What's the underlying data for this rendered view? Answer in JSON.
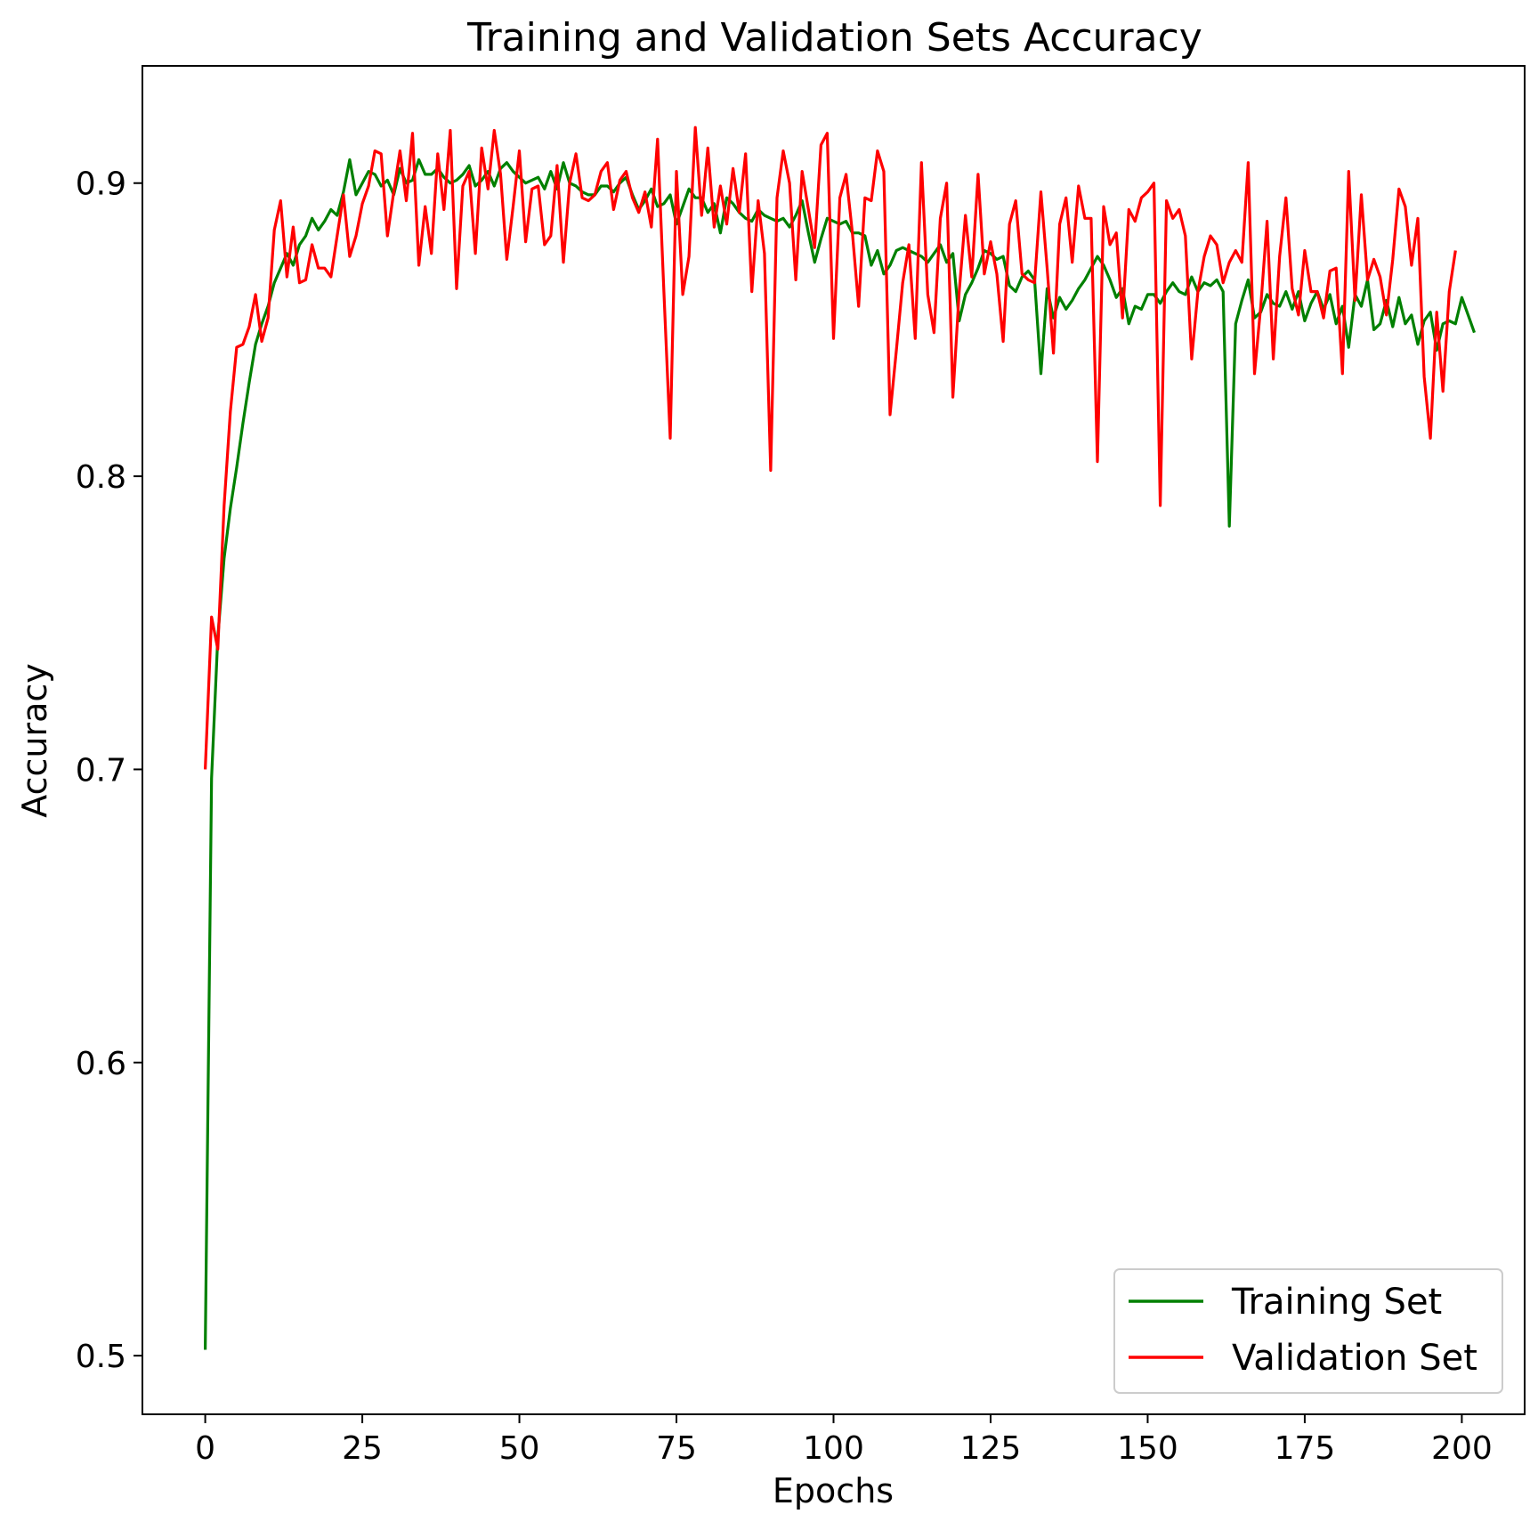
{
  "chart_data": {
    "type": "line",
    "title": "Training and Validation Sets Accuracy",
    "xlabel": "Epochs",
    "ylabel": "Accuracy",
    "xlim": [
      -10,
      210
    ],
    "ylim": [
      0.48,
      0.94
    ],
    "xticks": [
      0,
      25,
      50,
      75,
      100,
      125,
      150,
      175,
      200
    ],
    "yticks": [
      0.5,
      0.6,
      0.7,
      0.8,
      0.9
    ],
    "ytick_labels": [
      "0.5",
      "0.6",
      "0.7",
      "0.8",
      "0.9"
    ],
    "grid": false,
    "legend": {
      "placement": "lower-right"
    },
    "series": [
      {
        "name": "Training Set",
        "color": "#008000",
        "values": [
          0.502,
          0.697,
          0.745,
          0.772,
          0.789,
          0.803,
          0.818,
          0.832,
          0.845,
          0.852,
          0.858,
          0.866,
          0.871,
          0.876,
          0.872,
          0.879,
          0.882,
          0.888,
          0.884,
          0.887,
          0.891,
          0.889,
          0.897,
          0.908,
          0.896,
          0.9,
          0.904,
          0.903,
          0.899,
          0.901,
          0.896,
          0.905,
          0.9,
          0.901,
          0.908,
          0.903,
          0.903,
          0.905,
          0.902,
          0.9,
          0.901,
          0.903,
          0.906,
          0.899,
          0.901,
          0.904,
          0.899,
          0.905,
          0.907,
          0.904,
          0.902,
          0.9,
          0.901,
          0.902,
          0.898,
          0.904,
          0.898,
          0.907,
          0.9,
          0.899,
          0.897,
          0.896,
          0.896,
          0.899,
          0.899,
          0.897,
          0.9,
          0.902,
          0.896,
          0.891,
          0.894,
          0.898,
          0.892,
          0.893,
          0.896,
          0.886,
          0.892,
          0.898,
          0.895,
          0.895,
          0.89,
          0.893,
          0.883,
          0.895,
          0.893,
          0.89,
          0.888,
          0.887,
          0.891,
          0.889,
          0.888,
          0.887,
          0.888,
          0.885,
          0.889,
          0.894,
          0.883,
          0.873,
          0.881,
          0.888,
          0.887,
          0.886,
          0.887,
          0.883,
          0.883,
          0.882,
          0.872,
          0.877,
          0.869,
          0.872,
          0.877,
          0.878,
          0.877,
          0.876,
          0.875,
          0.873,
          0.876,
          0.879,
          0.873,
          0.876,
          0.853,
          0.862,
          0.866,
          0.871,
          0.877,
          0.876,
          0.874,
          0.875,
          0.865,
          0.863,
          0.868,
          0.87,
          0.867,
          0.835,
          0.864,
          0.854,
          0.861,
          0.857,
          0.86,
          0.864,
          0.867,
          0.871,
          0.875,
          0.872,
          0.867,
          0.861,
          0.864,
          0.852,
          0.858,
          0.857,
          0.862,
          0.862,
          0.859,
          0.863,
          0.866,
          0.863,
          0.862,
          0.868,
          0.863,
          0.866,
          0.865,
          0.867,
          0.863,
          0.783,
          0.852,
          0.86,
          0.867,
          0.854,
          0.856,
          0.862,
          0.859,
          0.858,
          0.863,
          0.857,
          0.863,
          0.853,
          0.859,
          0.863,
          0.857,
          0.862,
          0.852,
          0.858,
          0.844,
          0.862,
          0.858,
          0.867,
          0.85,
          0.852,
          0.86,
          0.851,
          0.861,
          0.852,
          0.855,
          0.845,
          0.853,
          0.856,
          0.843,
          0.852,
          0.853,
          0.852,
          0.861,
          0.855,
          0.849
        ]
      },
      {
        "name": "Validation Set",
        "color": "#ff0000",
        "values": [
          0.7,
          0.752,
          0.741,
          0.79,
          0.822,
          0.844,
          0.845,
          0.851,
          0.862,
          0.846,
          0.854,
          0.884,
          0.894,
          0.868,
          0.885,
          0.866,
          0.867,
          0.879,
          0.871,
          0.871,
          0.868,
          0.882,
          0.896,
          0.875,
          0.882,
          0.893,
          0.899,
          0.911,
          0.91,
          0.882,
          0.897,
          0.911,
          0.894,
          0.917,
          0.872,
          0.892,
          0.876,
          0.91,
          0.891,
          0.918,
          0.864,
          0.899,
          0.904,
          0.876,
          0.912,
          0.898,
          0.918,
          0.903,
          0.874,
          0.892,
          0.911,
          0.88,
          0.898,
          0.899,
          0.879,
          0.882,
          0.906,
          0.873,
          0.9,
          0.91,
          0.895,
          0.894,
          0.896,
          0.904,
          0.907,
          0.891,
          0.901,
          0.904,
          0.895,
          0.89,
          0.897,
          0.885,
          0.915,
          0.863,
          0.813,
          0.904,
          0.862,
          0.875,
          0.919,
          0.889,
          0.912,
          0.885,
          0.899,
          0.886,
          0.905,
          0.89,
          0.91,
          0.863,
          0.894,
          0.876,
          0.802,
          0.895,
          0.911,
          0.9,
          0.867,
          0.904,
          0.891,
          0.878,
          0.913,
          0.917,
          0.847,
          0.895,
          0.903,
          0.883,
          0.858,
          0.895,
          0.894,
          0.911,
          0.904,
          0.821,
          0.843,
          0.866,
          0.879,
          0.847,
          0.907,
          0.862,
          0.849,
          0.888,
          0.9,
          0.827,
          0.863,
          0.889,
          0.868,
          0.903,
          0.869,
          0.88,
          0.869,
          0.846,
          0.886,
          0.894,
          0.869,
          0.867,
          0.866,
          0.897,
          0.871,
          0.842,
          0.886,
          0.895,
          0.873,
          0.899,
          0.888,
          0.888,
          0.805,
          0.892,
          0.879,
          0.883,
          0.854,
          0.891,
          0.887,
          0.895,
          0.897,
          0.9,
          0.79,
          0.894,
          0.888,
          0.891,
          0.882,
          0.84,
          0.863,
          0.875,
          0.882,
          0.879,
          0.866,
          0.873,
          0.877,
          0.873,
          0.907,
          0.835,
          0.858,
          0.887,
          0.84,
          0.875,
          0.895,
          0.864,
          0.855,
          0.877,
          0.863,
          0.863,
          0.854,
          0.87,
          0.871,
          0.835,
          0.904,
          0.86,
          0.896,
          0.867,
          0.874,
          0.868,
          0.855,
          0.874,
          0.898,
          0.892,
          0.872,
          0.888,
          0.834,
          0.813,
          0.856,
          0.829,
          0.863,
          0.877
        ]
      }
    ]
  }
}
